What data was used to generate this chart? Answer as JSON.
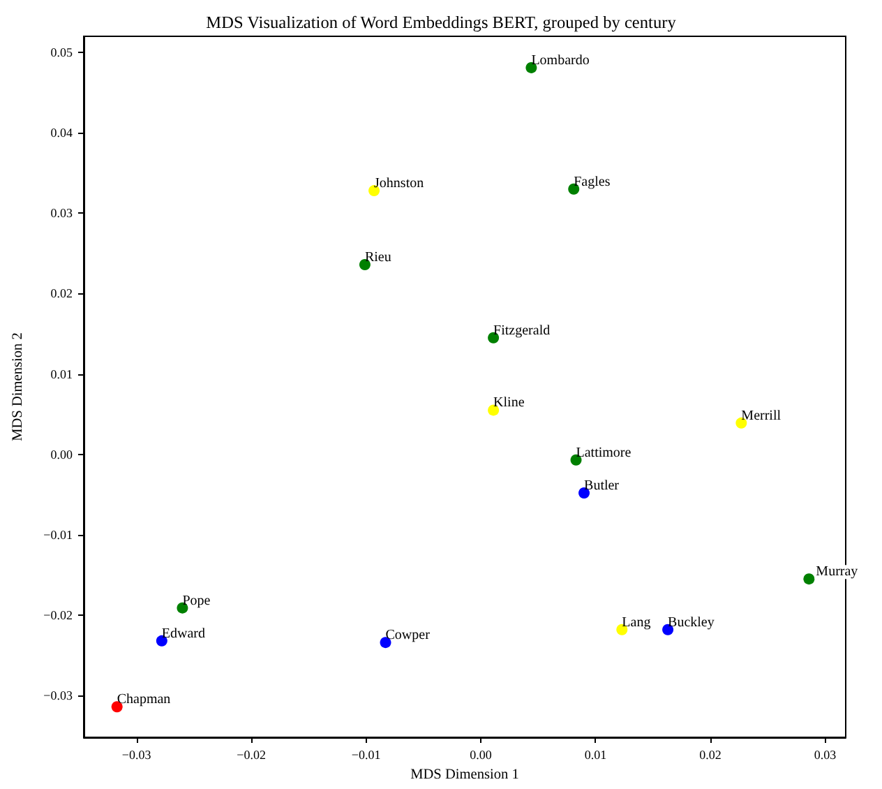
{
  "chart_data": {
    "type": "scatter",
    "title": "MDS Visualization of Word Embeddings BERT, grouped by century",
    "xlabel": "MDS Dimension 1",
    "ylabel": "MDS Dimension 2",
    "series": [
      {
        "color": "#008000",
        "x": [
          0.0044,
          0.0081,
          -0.0101,
          0.0011,
          0.0083,
          0.0286,
          -0.026
        ],
        "values": [
          0.0481,
          0.033,
          0.0236,
          0.0145,
          -0.0007,
          -0.0155,
          -0.0191
        ],
        "value_labels": [
          "Lombardo",
          "Fagles",
          "Rieu",
          "Fitzgerald",
          "Lattimore",
          "Murray",
          "Pope"
        ]
      },
      {
        "color": "#ffff00",
        "x": [
          -0.0093,
          0.0011,
          0.0227,
          0.0123
        ],
        "values": [
          0.0328,
          0.0055,
          0.0039,
          -0.0218
        ],
        "value_labels": [
          "Johnston",
          "Kline",
          "Merrill",
          "Lang"
        ]
      },
      {
        "color": "#0000ff",
        "x": [
          0.009,
          -0.0278,
          -0.0083,
          0.0163
        ],
        "values": [
          -0.0048,
          -0.0232,
          -0.0234,
          -0.0218
        ],
        "value_labels": [
          "Butler",
          "Edward",
          "Cowper",
          "Buckley"
        ]
      },
      {
        "color": "#ff0000",
        "x": [
          -0.0317
        ],
        "values": [
          -0.0314
        ],
        "value_labels": [
          "Chapman"
        ]
      }
    ],
    "xlim": [
      -0.0346,
      0.0318
    ],
    "ylim": [
      -0.0352,
      0.052
    ],
    "xticks": [
      {
        "value": -0.03,
        "label": "−0.03"
      },
      {
        "value": -0.02,
        "label": "−0.02"
      },
      {
        "value": -0.01,
        "label": "−0.01"
      },
      {
        "value": 0,
        "label": "0.00"
      },
      {
        "value": 0.01,
        "label": "0.01"
      },
      {
        "value": 0.02,
        "label": "0.02"
      },
      {
        "value": 0.03,
        "label": "0.03"
      }
    ],
    "yticks": [
      {
        "value": -0.03,
        "label": "−0.03"
      },
      {
        "value": -0.02,
        "label": "−0.02"
      },
      {
        "value": -0.01,
        "label": "−0.01"
      },
      {
        "value": 0,
        "label": "0.00"
      },
      {
        "value": 0.01,
        "label": "0.01"
      },
      {
        "value": 0.02,
        "label": "0.02"
      },
      {
        "value": 0.03,
        "label": "0.03"
      },
      {
        "value": 0.04,
        "label": "0.04"
      },
      {
        "value": 0.05,
        "label": "0.05"
      }
    ],
    "marker": "circle"
  }
}
